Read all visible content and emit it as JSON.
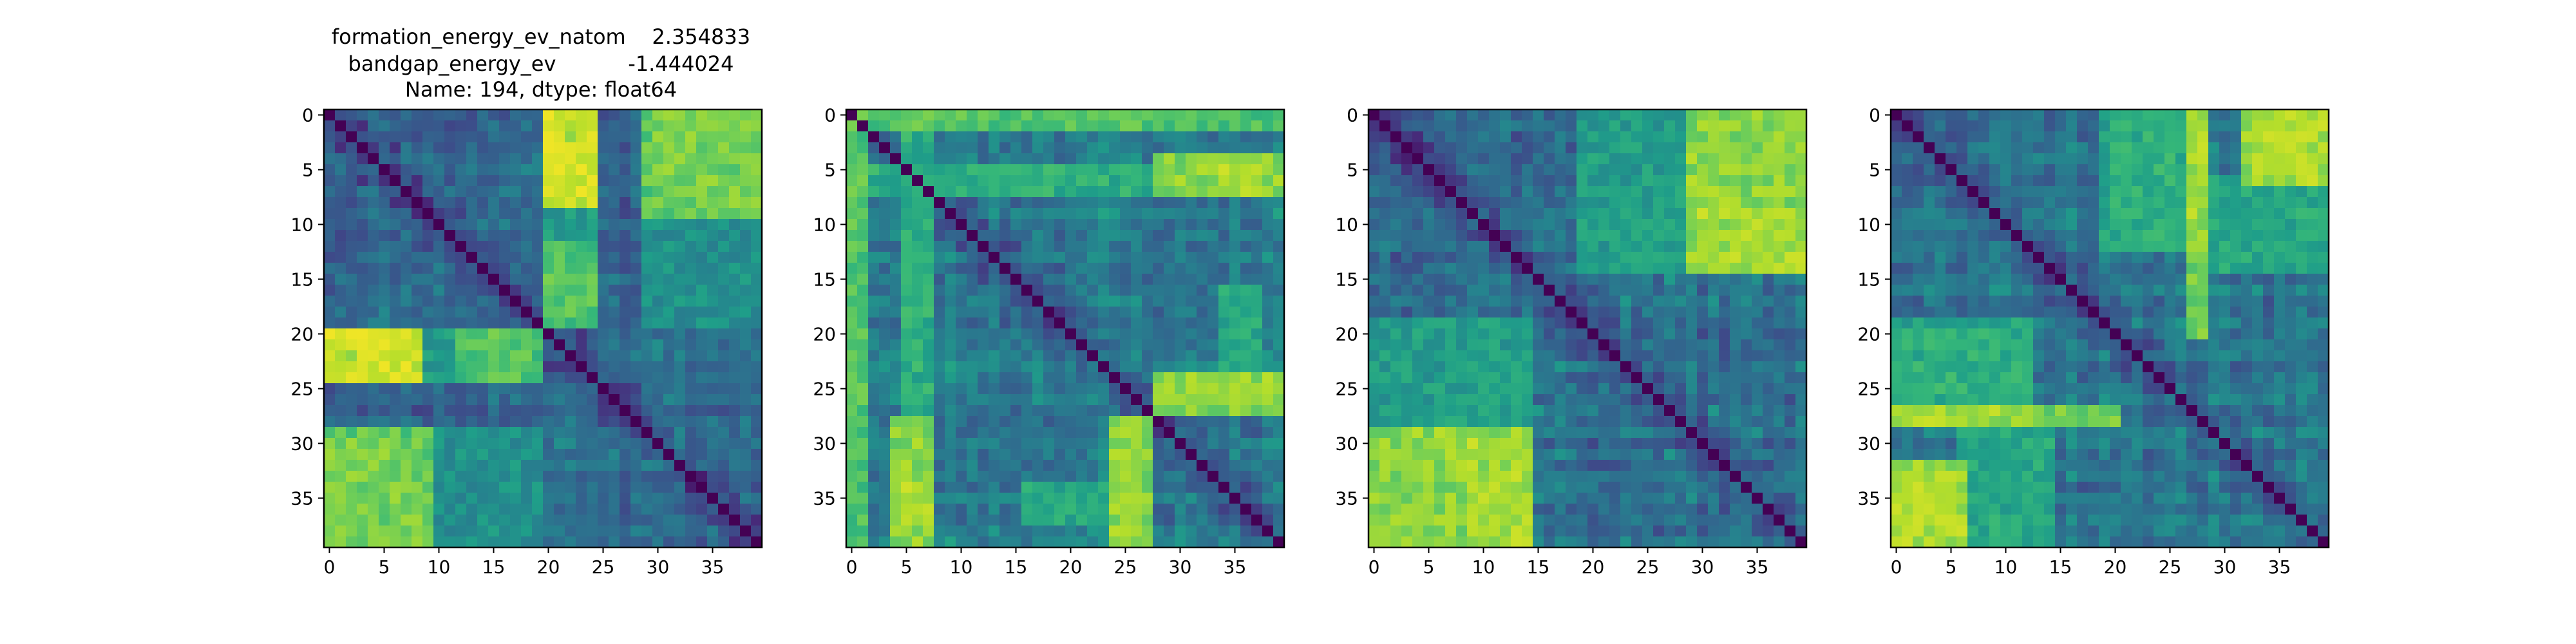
{
  "figure_title": {
    "lines": [
      "formation_energy_ev_natom    2.354833",
      "bandgap_energy_ev           -1.444024",
      "Name: 194, dtype: float64"
    ]
  },
  "colors": {
    "colormap": "viridis",
    "viridis_stops": [
      "#440154",
      "#482878",
      "#3e4a89",
      "#31688e",
      "#26828e",
      "#1f9e89",
      "#35b779",
      "#6ece58",
      "#b5de2b",
      "#fde725"
    ]
  },
  "chart_data": [
    {
      "type": "heatmap",
      "title": "",
      "size": 40,
      "xticks": [
        0,
        5,
        10,
        15,
        20,
        25,
        30,
        35
      ],
      "yticks": [
        0,
        5,
        10,
        15,
        20,
        25,
        30,
        35
      ],
      "value_range": [
        0,
        1
      ],
      "diagonal": 0,
      "seed": 11,
      "base": 0.24,
      "hot_blocks": [
        {
          "rows": [
            0,
            8
          ],
          "cols": [
            20,
            24
          ],
          "value": 0.9
        },
        {
          "rows": [
            0,
            8
          ],
          "cols": [
            30,
            39
          ],
          "value": 0.78
        },
        {
          "rows": [
            20,
            24
          ],
          "cols": [
            0,
            8
          ],
          "value": 0.9
        },
        {
          "rows": [
            20,
            24
          ],
          "cols": [
            12,
            19
          ],
          "value": 0.72
        },
        {
          "rows": [
            29,
            39
          ],
          "cols": [
            0,
            9
          ],
          "value": 0.74
        },
        {
          "rows": [
            29,
            39
          ],
          "cols": [
            10,
            19
          ],
          "value": 0.5
        },
        {
          "rows": [
            9,
            19
          ],
          "cols": [
            20,
            24
          ],
          "value": 0.55
        },
        {
          "rows": [
            20,
            24
          ],
          "cols": [
            25,
            39
          ],
          "value": 0.32
        }
      ]
    },
    {
      "type": "heatmap",
      "title": "",
      "size": 40,
      "xticks": [
        0,
        5,
        10,
        15,
        20,
        25,
        30,
        35
      ],
      "yticks": [
        0,
        5,
        10,
        15,
        20,
        25,
        30,
        35
      ],
      "value_range": [
        0,
        1
      ],
      "diagonal": 0,
      "seed": 23,
      "base": 0.3,
      "hot_blocks": [
        {
          "rows": [
            0,
            1
          ],
          "cols": [
            0,
            39
          ],
          "value": 0.72
        },
        {
          "rows": [
            0,
            39
          ],
          "cols": [
            0,
            1
          ],
          "value": 0.62
        },
        {
          "rows": [
            0,
            39
          ],
          "cols": [
            5,
            7
          ],
          "value": 0.62
        },
        {
          "rows": [
            5,
            7
          ],
          "cols": [
            0,
            39
          ],
          "value": 0.55
        },
        {
          "rows": [
            4,
            7
          ],
          "cols": [
            28,
            39
          ],
          "value": 0.82
        },
        {
          "rows": [
            24,
            26
          ],
          "cols": [
            28,
            39
          ],
          "value": 0.8
        },
        {
          "rows": [
            28,
            39
          ],
          "cols": [
            24,
            27
          ],
          "value": 0.82
        },
        {
          "rows": [
            34,
            37
          ],
          "cols": [
            4,
            7
          ],
          "value": 0.85
        },
        {
          "rows": [
            16,
            25
          ],
          "cols": [
            34,
            37
          ],
          "value": 0.6
        }
      ]
    },
    {
      "type": "heatmap",
      "title": "",
      "size": 40,
      "xticks": [
        0,
        5,
        10,
        15,
        20,
        25,
        30,
        35
      ],
      "yticks": [
        0,
        5,
        10,
        15,
        20,
        25,
        30,
        35
      ],
      "value_range": [
        0,
        1
      ],
      "diagonal": 0,
      "seed": 37,
      "base": 0.26,
      "hot_blocks": [
        {
          "rows": [
            0,
            14
          ],
          "cols": [
            30,
            39
          ],
          "value": 0.62
        },
        {
          "rows": [
            9,
            14
          ],
          "cols": [
            30,
            39
          ],
          "value": 0.85
        },
        {
          "rows": [
            0,
            9
          ],
          "cols": [
            30,
            39
          ],
          "value": 0.65
        },
        {
          "rows": [
            29,
            39
          ],
          "cols": [
            0,
            14
          ],
          "value": 0.82
        },
        {
          "rows": [
            19,
            28
          ],
          "cols": [
            0,
            14
          ],
          "value": 0.55
        },
        {
          "rows": [
            9,
            14
          ],
          "cols": [
            19,
            29
          ],
          "value": 0.55
        }
      ]
    },
    {
      "type": "heatmap",
      "title": "",
      "size": 40,
      "xticks": [
        0,
        5,
        10,
        15,
        20,
        25,
        30,
        35
      ],
      "yticks": [
        0,
        5,
        10,
        15,
        20,
        25,
        30,
        35
      ],
      "value_range": [
        0,
        1
      ],
      "diagonal": 0,
      "seed": 53,
      "base": 0.3,
      "hot_blocks": [
        {
          "rows": [
            0,
            12
          ],
          "cols": [
            20,
            27
          ],
          "value": 0.62
        },
        {
          "rows": [
            0,
            12
          ],
          "cols": [
            27,
            28
          ],
          "value": 0.85
        },
        {
          "rows": [
            0,
            5
          ],
          "cols": [
            33,
            39
          ],
          "value": 0.85
        },
        {
          "rows": [
            19,
            28
          ],
          "cols": [
            0,
            12
          ],
          "value": 0.58
        },
        {
          "rows": [
            27,
            28
          ],
          "cols": [
            0,
            20
          ],
          "value": 0.78
        },
        {
          "rows": [
            32,
            39
          ],
          "cols": [
            0,
            6
          ],
          "value": 0.85
        },
        {
          "rows": [
            29,
            39
          ],
          "cols": [
            6,
            14
          ],
          "value": 0.6
        }
      ]
    }
  ]
}
